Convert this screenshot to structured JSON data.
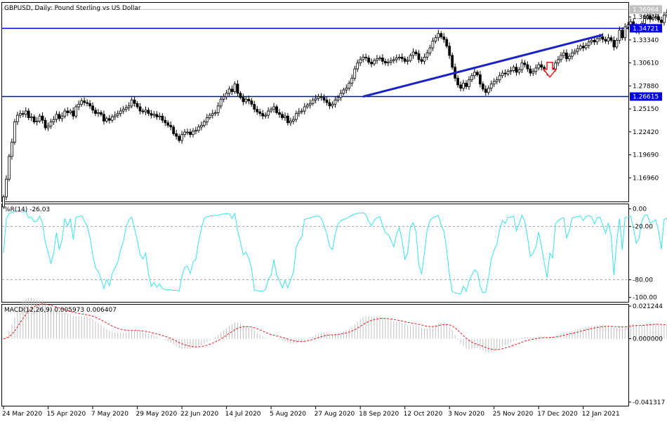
{
  "header": {
    "symbol": "GBPUSD",
    "timeframe": "Daily",
    "description": "Pound Sterling vs US Dollar"
  },
  "chart_data": [
    {
      "type": "candlestick",
      "name": "GBPUSD",
      "ylim": [
        1.1415,
        1.3775
      ],
      "y_ticks": [
        1.3607,
        1.3334,
        1.3061,
        1.2788,
        1.2515,
        1.2242,
        1.1969,
        1.1696
      ],
      "y_tick_labels": [
        "1.36070",
        "1.33340",
        "1.30610",
        "1.27880",
        "1.25150",
        "1.22420",
        "1.19690",
        "1.16960"
      ],
      "current_price": {
        "value": 1.36964,
        "label": "1.36964",
        "color": "#c0c0c0"
      },
      "horizontal_lines": [
        {
          "value": 1.34721,
          "label": "1.34721",
          "color": "#0000e6"
        },
        {
          "value": 1.26615,
          "label": "1.26615",
          "color": "#0000e6"
        }
      ],
      "trendline": {
        "from": {
          "date": "2020-09-21",
          "value": 1.2661
        },
        "to": {
          "date": "2021-01-19",
          "value": 1.3395
        },
        "color": "#1a22c8"
      },
      "annotation": {
        "type": "down-arrow",
        "date": "2020-12-23",
        "value": 1.2985,
        "color": "#e31a1a"
      },
      "x_labels": [
        "24 Mar 2020",
        "15 Apr 2020",
        "7 May 2020",
        "29 May 2020",
        "22 Jun 2020",
        "14 Jul 2020",
        "5 Aug 2020",
        "27 Aug 2020",
        "18 Sep 2020",
        "12 Oct 2020",
        "3 Nov 2020",
        "25 Nov 2020",
        "17 Dec 2020",
        "12 Jan 2021"
      ],
      "close_series": [
        1.147,
        1.168,
        1.195,
        1.212,
        1.236,
        1.244,
        1.246,
        1.245,
        1.249,
        1.241,
        1.242,
        1.236,
        1.237,
        1.243,
        1.238,
        1.229,
        1.231,
        1.236,
        1.239,
        1.245,
        1.24,
        1.243,
        1.249,
        1.247,
        1.249,
        1.243,
        1.254,
        1.257,
        1.261,
        1.259,
        1.258,
        1.255,
        1.25,
        1.246,
        1.247,
        1.245,
        1.237,
        1.24,
        1.238,
        1.242,
        1.244,
        1.246,
        1.249,
        1.251,
        1.253,
        1.255,
        1.262,
        1.258,
        1.254,
        1.249,
        1.248,
        1.25,
        1.246,
        1.244,
        1.245,
        1.242,
        1.243,
        1.238,
        1.235,
        1.232,
        1.23,
        1.222,
        1.219,
        1.214,
        1.221,
        1.224,
        1.224,
        1.221,
        1.225,
        1.226,
        1.23,
        1.232,
        1.236,
        1.241,
        1.244,
        1.246,
        1.247,
        1.255,
        1.263,
        1.266,
        1.27,
        1.275,
        1.272,
        1.281,
        1.27,
        1.265,
        1.26,
        1.263,
        1.261,
        1.257,
        1.251,
        1.248,
        1.246,
        1.243,
        1.244,
        1.249,
        1.251,
        1.254,
        1.247,
        1.245,
        1.241,
        1.243,
        1.235,
        1.237,
        1.239,
        1.246,
        1.248,
        1.249,
        1.254,
        1.256,
        1.258,
        1.262,
        1.264,
        1.266,
        1.265,
        1.262,
        1.259,
        1.255,
        1.257,
        1.262,
        1.265,
        1.27,
        1.274,
        1.276,
        1.282,
        1.288,
        1.299,
        1.306,
        1.31,
        1.313,
        1.312,
        1.307,
        1.305,
        1.309,
        1.311,
        1.312,
        1.308,
        1.306,
        1.307,
        1.309,
        1.31,
        1.312,
        1.313,
        1.311,
        1.308,
        1.309,
        1.315,
        1.319,
        1.317,
        1.31,
        1.308,
        1.313,
        1.318,
        1.324,
        1.332,
        1.336,
        1.341,
        1.337,
        1.334,
        1.326,
        1.315,
        1.301,
        1.288,
        1.28,
        1.276,
        1.282,
        1.278,
        1.286,
        1.291,
        1.295,
        1.292,
        1.281,
        1.275,
        1.271,
        1.276,
        1.281,
        1.284,
        1.286,
        1.291,
        1.294,
        1.293,
        1.296,
        1.297,
        1.301,
        1.295,
        1.298,
        1.306,
        1.304,
        1.299,
        1.294,
        1.296,
        1.3,
        1.304,
        1.301,
        1.298,
        1.295,
        1.3,
        1.299,
        1.306,
        1.31,
        1.315,
        1.318,
        1.311,
        1.314,
        1.318,
        1.32,
        1.323,
        1.326,
        1.324,
        1.327,
        1.331,
        1.333,
        1.331,
        1.335,
        1.337,
        1.334,
        1.332,
        1.336,
        1.333,
        1.325,
        1.333,
        1.345,
        1.336,
        1.349,
        1.351,
        1.355,
        1.35,
        1.344,
        1.346,
        1.353,
        1.359,
        1.362,
        1.358,
        1.36,
        1.361,
        1.357,
        1.354,
        1.363,
        1.366,
        1.36,
        1.361,
        1.366,
        1.369,
        1.368,
        1.371,
        1.37,
        1.369,
        1.37
      ],
      "x_tick_positions": [
        0,
        16,
        32,
        48,
        64,
        80,
        96,
        112,
        128,
        144,
        160,
        176,
        192,
        208
      ]
    },
    {
      "type": "line",
      "name": "%R(14)",
      "label": "%R(14) -26.03",
      "ylim": [
        -105,
        5
      ],
      "levels": [
        -20,
        -80
      ],
      "y_tick_labels": [
        "0.00",
        "-20.00",
        "-80.00",
        "-100.00"
      ],
      "y_ticks": [
        0,
        -20,
        -80,
        -100
      ],
      "color": "#38e1f0"
    },
    {
      "type": "histogram+line",
      "name": "MACD(12,26,9)",
      "label": "MACD(12,26,9) 0.005973 0.006407",
      "ylim": [
        -0.0437,
        0.0222
      ],
      "y_ticks": [
        0.021244,
        0.0,
        -0.041317
      ],
      "y_tick_labels": [
        "0.021244",
        "0.000000",
        "-0.041317"
      ],
      "histogram_color": "#c0c0c0",
      "signal_color": "#e31a1a"
    }
  ]
}
